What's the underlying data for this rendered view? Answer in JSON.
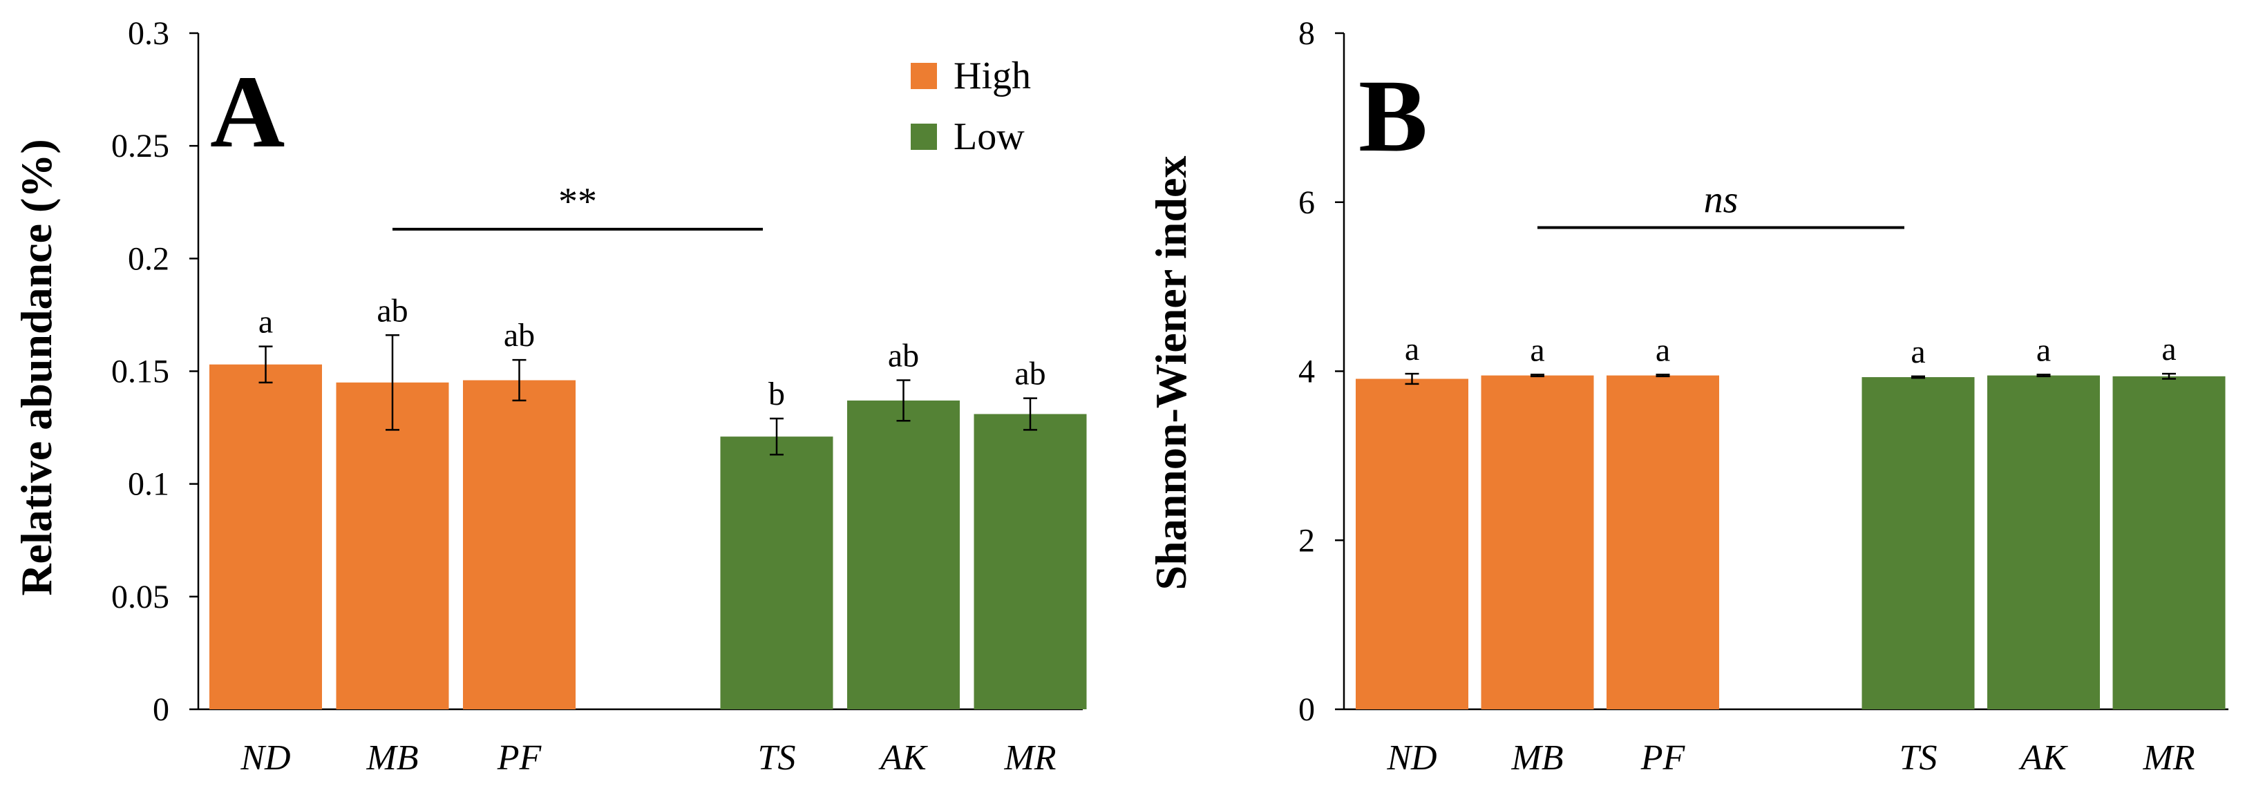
{
  "colors": {
    "high": "#ED7D31",
    "low": "#548235",
    "axis": "#000000"
  },
  "chart_data": [
    {
      "id": "A",
      "type": "bar",
      "panel_label": "A",
      "ylabel": "Relative abundance (%)",
      "ylim": [
        0,
        0.3
      ],
      "ticks": [
        0,
        0.05,
        0.1,
        0.15,
        0.2,
        0.25,
        0.3
      ],
      "tick_labels": [
        "0",
        "0.05",
        "0.1",
        "0.15",
        "0.2",
        "0.25",
        "0.3"
      ],
      "categories": [
        "ND",
        "MB",
        "PF",
        "TS",
        "AK",
        "MR"
      ],
      "groups": [
        "High",
        "High",
        "High",
        "Low",
        "Low",
        "Low"
      ],
      "values": [
        0.153,
        0.145,
        0.146,
        0.121,
        0.137,
        0.131
      ],
      "errors": [
        0.008,
        0.021,
        0.009,
        0.008,
        0.009,
        0.007
      ],
      "sig_letters": [
        "a",
        "ab",
        "ab",
        "b",
        "ab",
        "ab"
      ],
      "bracket": {
        "from": "MB",
        "to": "TS",
        "y": 0.213,
        "label": "**",
        "italic": false
      },
      "legend": [
        {
          "name": "High",
          "color": "#ED7D31"
        },
        {
          "name": "Low",
          "color": "#548235"
        }
      ]
    },
    {
      "id": "B",
      "type": "bar",
      "panel_label": "B",
      "ylabel": "Shannon-Wiener index",
      "ylim": [
        0,
        8
      ],
      "ticks": [
        0,
        2,
        4,
        6,
        8
      ],
      "tick_labels": [
        "0",
        "2",
        "4",
        "6",
        "8"
      ],
      "categories": [
        "ND",
        "MB",
        "PF",
        "TS",
        "AK",
        "MR"
      ],
      "groups": [
        "High",
        "High",
        "High",
        "Low",
        "Low",
        "Low"
      ],
      "values": [
        3.91,
        3.95,
        3.95,
        3.93,
        3.95,
        3.94
      ],
      "errors": [
        0.06,
        0.01,
        0.01,
        0.01,
        0.01,
        0.03
      ],
      "sig_letters": [
        "a",
        "a",
        "a",
        "a",
        "a",
        "a"
      ],
      "bracket": {
        "from": "MB",
        "to": "TS",
        "y": 5.7,
        "label": "ns",
        "italic": true
      }
    }
  ]
}
